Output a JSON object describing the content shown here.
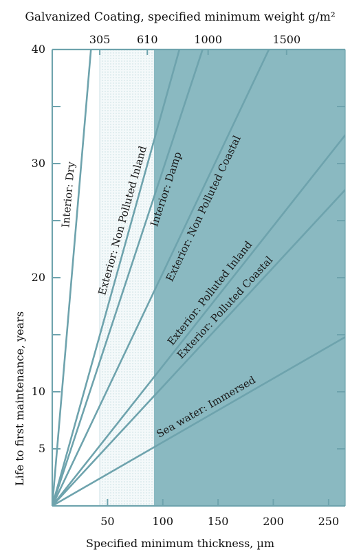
{
  "chart_data": {
    "type": "line",
    "title": "Galvanized Coating, specified minimum weight g/m²",
    "xlabel": "Specified minimum thickness, µm",
    "ylabel": "Life to first maintenance, years",
    "xlim": [
      0,
      265
    ],
    "ylim": [
      0,
      40
    ],
    "x_ticks": [
      50,
      100,
      150,
      200,
      250
    ],
    "y_ticks": [
      5,
      10,
      20,
      30,
      40
    ],
    "y_minor_ticks": [
      15,
      25,
      35
    ],
    "top_ticks": [
      {
        "label": "305",
        "x_um": 43
      },
      {
        "label": "610",
        "x_um": 86
      },
      {
        "label": "1000",
        "x_um": 141
      },
      {
        "label": "1500",
        "x_um": 212
      }
    ],
    "shaded_regions": [
      {
        "from": 43,
        "to": 92,
        "style": "light-dotted"
      },
      {
        "from": 92,
        "to": 265,
        "style": "solid",
        "color": "#8ab9c1"
      }
    ],
    "colors": {
      "line": "#6ea3ad",
      "axis": "#6ea3ad",
      "shade": "#8ab9c1",
      "light": "#cde2e6"
    },
    "series": [
      {
        "name": "Interior: Dry",
        "points": [
          [
            0,
            0
          ],
          [
            35,
            40
          ]
        ]
      },
      {
        "name": "Exterior: Non Polluted Inland",
        "points": [
          [
            0,
            0
          ],
          [
            115,
            40
          ]
        ]
      },
      {
        "name": "Interior: Damp",
        "points": [
          [
            0,
            0
          ],
          [
            136,
            40
          ]
        ]
      },
      {
        "name": "Exterior: Non Polluted Coastal",
        "points": [
          [
            0,
            0
          ],
          [
            196,
            40
          ]
        ]
      },
      {
        "name": "Exterior: Polluted Inland",
        "points": [
          [
            0,
            0
          ],
          [
            265,
            32.5
          ]
        ]
      },
      {
        "name": "Exterior: Polluted Coastal",
        "points": [
          [
            0,
            0
          ],
          [
            265,
            27.7
          ]
        ]
      },
      {
        "name": "Sea water: Immersed",
        "points": [
          [
            0,
            0
          ],
          [
            265,
            14.8
          ]
        ]
      }
    ]
  }
}
